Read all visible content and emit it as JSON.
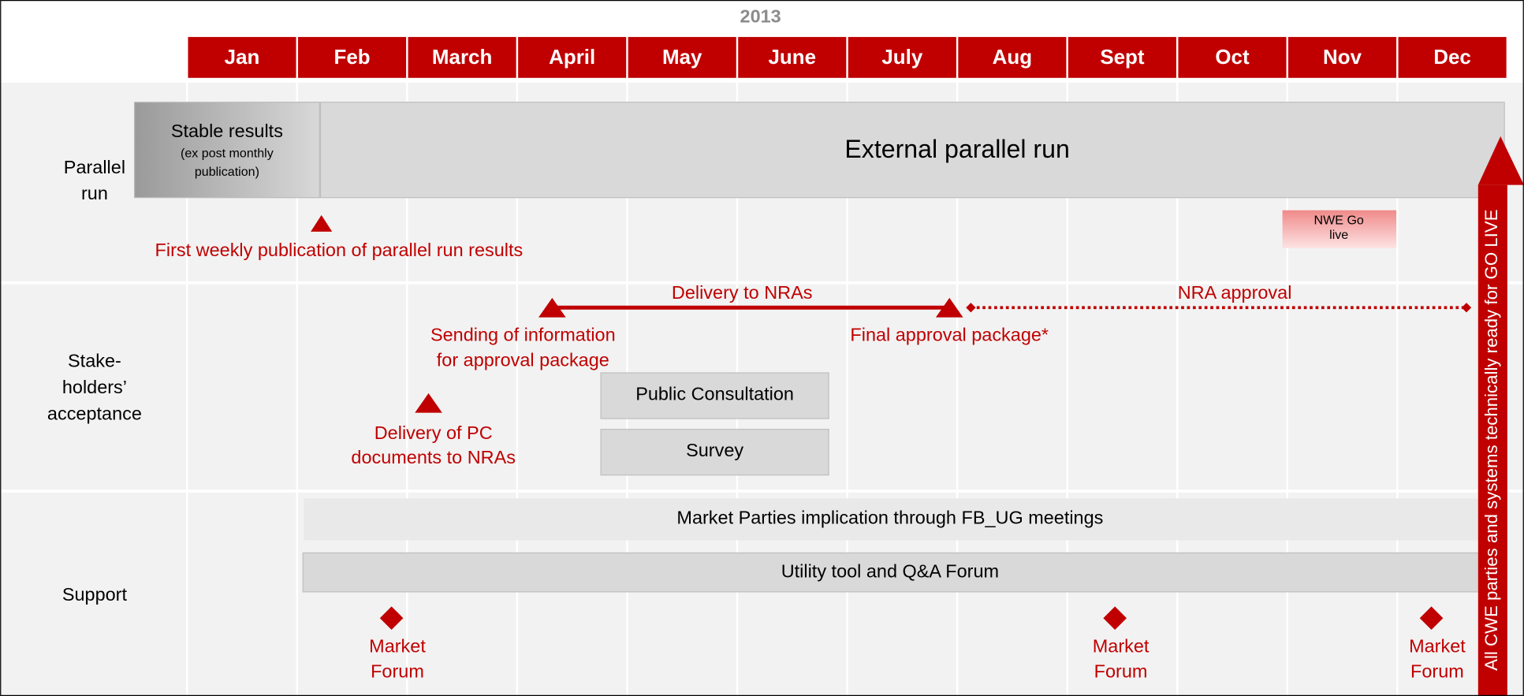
{
  "header": {
    "year": "2013",
    "months": [
      "Jan",
      "Feb",
      "March",
      "April",
      "May",
      "June",
      "July",
      "Aug",
      "Sept",
      "Oct",
      "Nov",
      "Dec"
    ]
  },
  "rows": [
    {
      "label": [
        "Parallel",
        "run"
      ]
    },
    {
      "label": [
        "Stake-",
        "holders’",
        "acceptance"
      ]
    },
    {
      "label": [
        "Support"
      ]
    }
  ],
  "parallel_run": {
    "stable": {
      "title": "Stable results",
      "note": [
        "(ex post  monthly",
        "publication)"
      ]
    },
    "external": "External parallel run",
    "first_weekly": "First weekly publication of parallel run results",
    "nwe": [
      "NWE Go",
      "live"
    ]
  },
  "acceptance": {
    "delivery": "Delivery to NRAs",
    "approval": "NRA approval",
    "sending": [
      "Sending of information",
      "for approval package"
    ],
    "final": "Final approval package*",
    "consultation": "Public Consultation",
    "survey": "Survey",
    "pc_docs": [
      "Delivery of PC",
      "documents to NRAs"
    ]
  },
  "support": {
    "market_parties": "Market Parties implication through FB_UG meetings",
    "utility": "Utility tool and Q&A Forum",
    "forums": [
      [
        "Market",
        "Forum"
      ],
      [
        "Market",
        "Forum"
      ],
      [
        "Market",
        "Forum"
      ]
    ]
  },
  "go_live": "All CWE parties and systems technically ready for GO LIVE"
}
